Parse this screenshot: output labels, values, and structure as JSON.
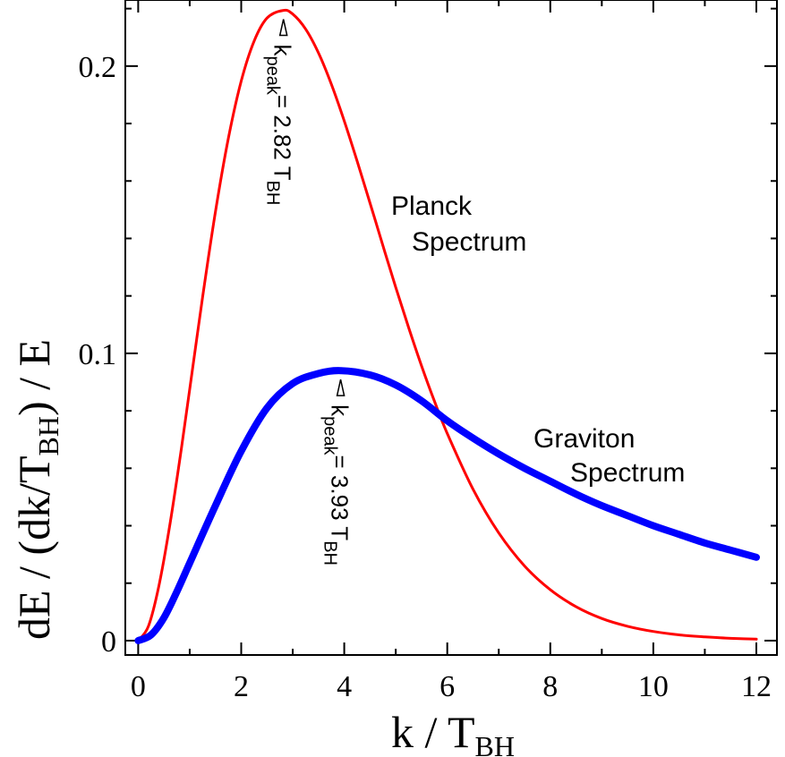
{
  "chart_data": {
    "type": "line",
    "title": "",
    "xlabel": "k / T",
    "xlabel_sub": "BH",
    "ylabel": "dE / (dk/T",
    "ylabel_sub": "BH",
    "ylabel_end": ") / E",
    "xlim": [
      -0.25,
      12.4
    ],
    "ylim": [
      -0.005,
      0.223
    ],
    "x_ticks": [
      0,
      2,
      4,
      6,
      8,
      10,
      12
    ],
    "x_tick_labels": [
      "0",
      "2",
      "4",
      "6",
      "8",
      "10",
      "12"
    ],
    "y_ticks": [
      0,
      0.1,
      0.2
    ],
    "y_tick_labels": [
      "0",
      "0.1",
      "0.2"
    ],
    "grid": false,
    "legend": "none",
    "series": [
      {
        "name": "Planck Spectrum",
        "color": "#ff0000",
        "x": [
          0,
          0.2,
          0.4,
          0.6,
          0.8,
          1.0,
          1.25,
          1.5,
          1.75,
          2.0,
          2.25,
          2.5,
          2.82,
          3.0,
          3.25,
          3.5,
          3.75,
          4.0,
          4.25,
          4.5,
          4.75,
          5.0,
          5.25,
          5.5,
          5.75,
          6.0,
          6.5,
          7.0,
          7.5,
          8.0,
          8.5,
          9.0,
          9.5,
          10.0,
          10.5,
          11.0,
          11.5,
          12.0
        ],
        "y": [
          0,
          0.0051,
          0.0189,
          0.0387,
          0.0621,
          0.0874,
          0.1195,
          0.1493,
          0.1748,
          0.1948,
          0.2087,
          0.2167,
          0.2194,
          0.2181,
          0.2129,
          0.2046,
          0.1937,
          0.1809,
          0.1669,
          0.1523,
          0.1376,
          0.123,
          0.109,
          0.0957,
          0.0834,
          0.0721,
          0.0527,
          0.0375,
          0.026,
          0.0177,
          0.0118,
          0.0077,
          0.005,
          0.0032,
          0.002,
          0.0013,
          0.0008,
          0.0005
        ]
      },
      {
        "name": "Graviton Spectrum",
        "color": "#0000ff",
        "x": [
          0,
          0.25,
          0.5,
          0.75,
          1.0,
          1.5,
          2.0,
          2.5,
          3.0,
          3.5,
          3.93,
          4.5,
          5.0,
          5.5,
          6.0,
          6.5,
          7.0,
          7.5,
          8.0,
          8.5,
          9.0,
          9.5,
          10.0,
          10.5,
          11.0,
          11.5,
          12.0
        ],
        "y": [
          0,
          0.002,
          0.008,
          0.017,
          0.027,
          0.047,
          0.066,
          0.081,
          0.0895,
          0.093,
          0.094,
          0.0925,
          0.089,
          0.0835,
          0.0765,
          0.0705,
          0.065,
          0.06,
          0.0555,
          0.051,
          0.047,
          0.0435,
          0.04,
          0.037,
          0.034,
          0.0315,
          0.029
        ]
      }
    ],
    "annotations": [
      {
        "series": 0,
        "prefix": "k",
        "sub": "peak",
        "mid": "= 2.82 T",
        "sub2": "BH",
        "x": 2.82,
        "y": 0.2194
      },
      {
        "series": 1,
        "prefix": "k",
        "sub": "peak",
        "mid": "= 3.93 T",
        "sub2": "BH",
        "x": 3.93,
        "y": 0.094
      }
    ],
    "curve_labels": [
      {
        "series": 0,
        "line1": "Planck",
        "line2": "Spectrum"
      },
      {
        "series": 1,
        "line1": "Graviton",
        "line2": "Spectrum"
      }
    ]
  }
}
